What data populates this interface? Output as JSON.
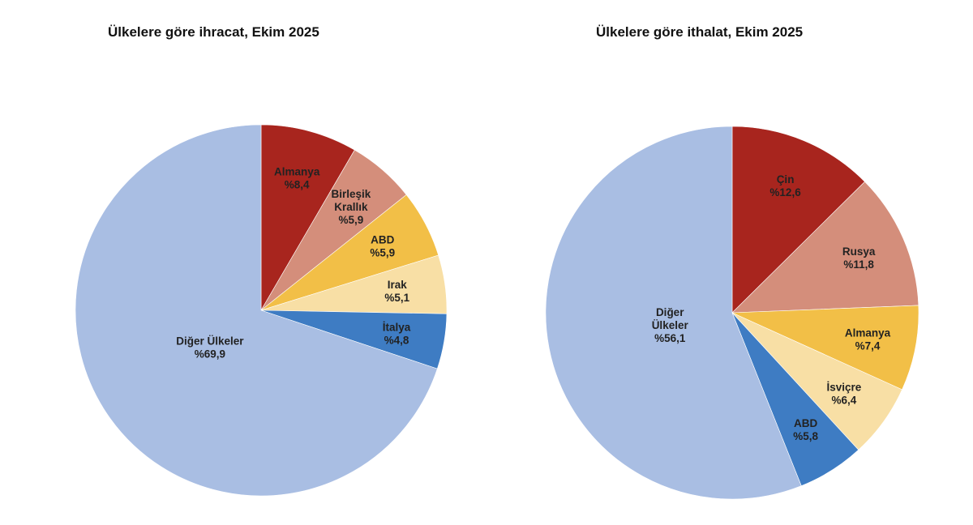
{
  "chart_data": [
    {
      "type": "pie",
      "title": "Ülkelere göre ihracat, Ekim 2025",
      "start": "12 o'clock",
      "direction": "clockwise",
      "slices": [
        {
          "label": [
            "Almanya"
          ],
          "value": 8.4,
          "text": "%8,4",
          "color": "#A8251E"
        },
        {
          "label": [
            "Birleşik",
            "Krallık"
          ],
          "value": 5.9,
          "text": "%5,9",
          "color": "#D48E7B"
        },
        {
          "label": [
            "ABD"
          ],
          "value": 5.9,
          "text": "%5,9",
          "color": "#F2BF47"
        },
        {
          "label": [
            "Irak"
          ],
          "value": 5.1,
          "text": "%5,1",
          "color": "#F8DFA5"
        },
        {
          "label": [
            "İtalya"
          ],
          "value": 4.8,
          "text": "%4,8",
          "color": "#3E7CC3"
        },
        {
          "label": [
            "Diğer Ülkeler"
          ],
          "value": 69.9,
          "text": "%69,9",
          "color": "#A9BEE3"
        }
      ]
    },
    {
      "type": "pie",
      "title": "Ülkelere göre ithalat, Ekim 2025",
      "start": "12 o'clock",
      "direction": "clockwise",
      "slices": [
        {
          "label": [
            "Çin"
          ],
          "value": 12.6,
          "text": "%12,6",
          "color": "#A8251E"
        },
        {
          "label": [
            "Rusya"
          ],
          "value": 11.8,
          "text": "%11,8",
          "color": "#D48E7B"
        },
        {
          "label": [
            "Almanya"
          ],
          "value": 7.4,
          "text": "%7,4",
          "color": "#F2BF47"
        },
        {
          "label": [
            "İsviçre"
          ],
          "value": 6.4,
          "text": "%6,4",
          "color": "#F8DFA5"
        },
        {
          "label": [
            "ABD"
          ],
          "value": 5.8,
          "text": "%5,8",
          "color": "#3E7CC3"
        },
        {
          "label": [
            "Diğer",
            "Ülkeler"
          ],
          "value": 56.1,
          "text": "%56,1",
          "color": "#A9BEE3"
        }
      ]
    }
  ]
}
